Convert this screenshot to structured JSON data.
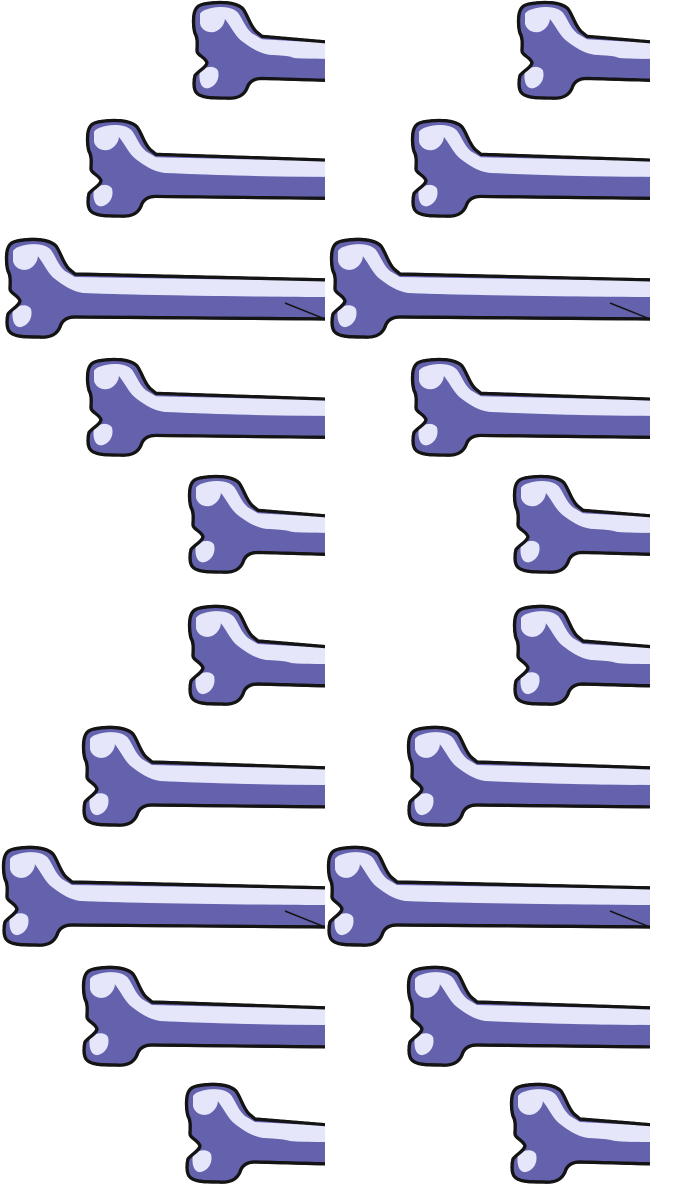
{
  "sheet": {
    "background": "#ffffff",
    "palette": {
      "bone_fill": "#6461ad",
      "bone_highlight": "#e6e6fb",
      "outline": "#141414"
    },
    "columns": [
      {
        "name": "left",
        "count": 10
      },
      {
        "name": "right",
        "count": 10
      }
    ],
    "icon": "bone-sprite"
  }
}
